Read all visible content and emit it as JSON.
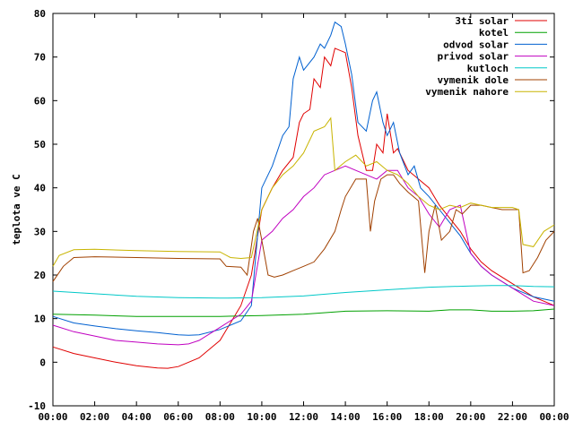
{
  "chart_data": {
    "type": "line",
    "title": "",
    "xlabel": "",
    "ylabel": "teplota ve C",
    "xlim": [
      0,
      24
    ],
    "ylim": [
      -10,
      80
    ],
    "xticks": [
      "00:00",
      "02:00",
      "04:00",
      "06:00",
      "08:00",
      "10:00",
      "12:00",
      "14:00",
      "16:00",
      "18:00",
      "20:00",
      "22:00",
      "00:00"
    ],
    "yticks": [
      -10,
      0,
      10,
      20,
      30,
      40,
      50,
      60,
      70,
      80
    ],
    "grid": false,
    "legend_position": "top-right",
    "series": [
      {
        "name": "3ti solar",
        "color": "#e00000",
        "points": [
          [
            0,
            3.5
          ],
          [
            1,
            2
          ],
          [
            2,
            1
          ],
          [
            3,
            0
          ],
          [
            4,
            -0.8
          ],
          [
            5,
            -1.3
          ],
          [
            5.5,
            -1.4
          ],
          [
            6,
            -1
          ],
          [
            7,
            1
          ],
          [
            8,
            5
          ],
          [
            9,
            13
          ],
          [
            9.5,
            20
          ],
          [
            10,
            35
          ],
          [
            10.5,
            40
          ],
          [
            11,
            44
          ],
          [
            11.5,
            47
          ],
          [
            11.8,
            55
          ],
          [
            12,
            57
          ],
          [
            12.3,
            58
          ],
          [
            12.5,
            65
          ],
          [
            12.8,
            63
          ],
          [
            13,
            70
          ],
          [
            13.3,
            68
          ],
          [
            13.5,
            72
          ],
          [
            14,
            71
          ],
          [
            14.3,
            63
          ],
          [
            14.6,
            52
          ],
          [
            15,
            44
          ],
          [
            15.3,
            44
          ],
          [
            15.5,
            50
          ],
          [
            15.8,
            48
          ],
          [
            16,
            57
          ],
          [
            16.3,
            48
          ],
          [
            16.5,
            49
          ],
          [
            16.8,
            46
          ],
          [
            17,
            44
          ],
          [
            17.5,
            42
          ],
          [
            18,
            40
          ],
          [
            18.5,
            36
          ],
          [
            19,
            33
          ],
          [
            19.5,
            30
          ],
          [
            20,
            26
          ],
          [
            20.5,
            23
          ],
          [
            21,
            21
          ],
          [
            22,
            18
          ],
          [
            23,
            15
          ],
          [
            24,
            13
          ]
        ]
      },
      {
        "name": "kotel",
        "color": "#00a000",
        "points": [
          [
            0,
            11
          ],
          [
            2,
            10.8
          ],
          [
            4,
            10.5
          ],
          [
            6,
            10.5
          ],
          [
            8,
            10.5
          ],
          [
            10,
            10.7
          ],
          [
            12,
            11
          ],
          [
            14,
            11.7
          ],
          [
            16,
            11.8
          ],
          [
            18,
            11.7
          ],
          [
            19,
            12
          ],
          [
            20,
            12
          ],
          [
            21,
            11.7
          ],
          [
            22,
            11.7
          ],
          [
            23,
            11.8
          ],
          [
            24,
            12.2
          ]
        ]
      },
      {
        "name": "odvod solar",
        "color": "#0060d0",
        "points": [
          [
            0,
            10.5
          ],
          [
            1,
            9
          ],
          [
            2,
            8.3
          ],
          [
            3,
            7.7
          ],
          [
            4,
            7.2
          ],
          [
            5,
            6.8
          ],
          [
            6,
            6.3
          ],
          [
            6.5,
            6.2
          ],
          [
            7,
            6.3
          ],
          [
            8,
            7.5
          ],
          [
            9,
            9.5
          ],
          [
            9.5,
            13
          ],
          [
            10,
            40
          ],
          [
            10.5,
            45
          ],
          [
            11,
            52
          ],
          [
            11.3,
            54
          ],
          [
            11.5,
            65
          ],
          [
            11.8,
            70
          ],
          [
            12,
            67
          ],
          [
            12.5,
            70
          ],
          [
            12.8,
            73
          ],
          [
            13,
            72
          ],
          [
            13.3,
            75
          ],
          [
            13.5,
            78
          ],
          [
            13.8,
            77
          ],
          [
            14,
            73
          ],
          [
            14.3,
            66
          ],
          [
            14.6,
            55
          ],
          [
            15,
            53
          ],
          [
            15.3,
            60
          ],
          [
            15.5,
            62
          ],
          [
            15.8,
            55
          ],
          [
            16,
            52
          ],
          [
            16.3,
            55
          ],
          [
            16.6,
            48
          ],
          [
            17,
            43
          ],
          [
            17.3,
            45
          ],
          [
            17.6,
            40
          ],
          [
            18,
            38
          ],
          [
            18.5,
            35
          ],
          [
            19,
            32
          ],
          [
            19.5,
            29
          ],
          [
            20,
            25
          ],
          [
            20.5,
            22
          ],
          [
            21,
            20
          ],
          [
            22,
            17
          ],
          [
            23,
            15
          ],
          [
            24,
            14
          ]
        ]
      },
      {
        "name": "privod solar",
        "color": "#c000c0",
        "points": [
          [
            0,
            8.5
          ],
          [
            1,
            7
          ],
          [
            2,
            6
          ],
          [
            3,
            5
          ],
          [
            4,
            4.6
          ],
          [
            5,
            4.2
          ],
          [
            6,
            4
          ],
          [
            6.5,
            4.2
          ],
          [
            7,
            5
          ],
          [
            8,
            8
          ],
          [
            9,
            11
          ],
          [
            9.5,
            14
          ],
          [
            10,
            28
          ],
          [
            10.5,
            30
          ],
          [
            11,
            33
          ],
          [
            11.5,
            35
          ],
          [
            12,
            38
          ],
          [
            12.5,
            40
          ],
          [
            13,
            43
          ],
          [
            13.5,
            44
          ],
          [
            14,
            45
          ],
          [
            14.5,
            44
          ],
          [
            15,
            43
          ],
          [
            15.5,
            42
          ],
          [
            16,
            44
          ],
          [
            16.5,
            44
          ],
          [
            17,
            40
          ],
          [
            17.5,
            38
          ],
          [
            18,
            34
          ],
          [
            18.5,
            31
          ],
          [
            19,
            35
          ],
          [
            19.5,
            36
          ],
          [
            20,
            25
          ],
          [
            20.5,
            22
          ],
          [
            21,
            20
          ],
          [
            22,
            17
          ],
          [
            23,
            14
          ],
          [
            24,
            13
          ]
        ]
      },
      {
        "name": "kutloch",
        "color": "#00c8c8",
        "points": [
          [
            0,
            16.3
          ],
          [
            2,
            15.7
          ],
          [
            4,
            15.1
          ],
          [
            6,
            14.8
          ],
          [
            8,
            14.7
          ],
          [
            10,
            14.8
          ],
          [
            12,
            15.2
          ],
          [
            14,
            16
          ],
          [
            16,
            16.6
          ],
          [
            18,
            17.2
          ],
          [
            20,
            17.5
          ],
          [
            21,
            17.6
          ],
          [
            22,
            17.6
          ],
          [
            23,
            17.4
          ],
          [
            24,
            17.3
          ]
        ]
      },
      {
        "name": "vymenik dole",
        "color": "#a04000",
        "points": [
          [
            0,
            18.5
          ],
          [
            0.5,
            22
          ],
          [
            1,
            24
          ],
          [
            2,
            24.2
          ],
          [
            4,
            24
          ],
          [
            6,
            23.8
          ],
          [
            8,
            23.7
          ],
          [
            8.3,
            22
          ],
          [
            9,
            21.8
          ],
          [
            9.3,
            20
          ],
          [
            9.6,
            30
          ],
          [
            9.8,
            33
          ],
          [
            10,
            28
          ],
          [
            10.3,
            20
          ],
          [
            10.6,
            19.5
          ],
          [
            11,
            20
          ],
          [
            11.5,
            21
          ],
          [
            12,
            22
          ],
          [
            12.5,
            23
          ],
          [
            13,
            26
          ],
          [
            13.5,
            30
          ],
          [
            13.8,
            35
          ],
          [
            14,
            38
          ],
          [
            14.5,
            42
          ],
          [
            15,
            42
          ],
          [
            15.2,
            30
          ],
          [
            15.4,
            37
          ],
          [
            15.7,
            42
          ],
          [
            16,
            43
          ],
          [
            16.3,
            43
          ],
          [
            16.6,
            41
          ],
          [
            17,
            39
          ],
          [
            17.5,
            37
          ],
          [
            17.8,
            20.5
          ],
          [
            18,
            30
          ],
          [
            18.3,
            36
          ],
          [
            18.6,
            28
          ],
          [
            19,
            30
          ],
          [
            19.3,
            35
          ],
          [
            19.6,
            34
          ],
          [
            20,
            36
          ],
          [
            20.5,
            36
          ],
          [
            21,
            35.5
          ],
          [
            21.5,
            35
          ],
          [
            22,
            35
          ],
          [
            22.3,
            35
          ],
          [
            22.5,
            20.5
          ],
          [
            22.8,
            21
          ],
          [
            23.2,
            24
          ],
          [
            23.6,
            28
          ],
          [
            24,
            30
          ]
        ]
      },
      {
        "name": "vymenik nahore",
        "color": "#c8b400",
        "points": [
          [
            0,
            22
          ],
          [
            0.3,
            24.5
          ],
          [
            1,
            25.8
          ],
          [
            2,
            25.9
          ],
          [
            4,
            25.6
          ],
          [
            6,
            25.4
          ],
          [
            8,
            25.3
          ],
          [
            8.5,
            24
          ],
          [
            9,
            23.8
          ],
          [
            9.5,
            24
          ],
          [
            10,
            35
          ],
          [
            10.5,
            40
          ],
          [
            11,
            43
          ],
          [
            11.5,
            45
          ],
          [
            12,
            48
          ],
          [
            12.5,
            53
          ],
          [
            13,
            54
          ],
          [
            13.3,
            56
          ],
          [
            13.5,
            44
          ],
          [
            14,
            46
          ],
          [
            14.5,
            47.5
          ],
          [
            15,
            45
          ],
          [
            15.5,
            46
          ],
          [
            16,
            44
          ],
          [
            16.5,
            43
          ],
          [
            17,
            41
          ],
          [
            17.5,
            38
          ],
          [
            18,
            36
          ],
          [
            18.5,
            35
          ],
          [
            19,
            36
          ],
          [
            19.5,
            35.5
          ],
          [
            20,
            36.5
          ],
          [
            20.5,
            36
          ],
          [
            21,
            35.5
          ],
          [
            21.5,
            35.5
          ],
          [
            22,
            35.5
          ],
          [
            22.3,
            35
          ],
          [
            22.5,
            27
          ],
          [
            23,
            26.5
          ],
          [
            23.5,
            30
          ],
          [
            24,
            31.5
          ]
        ]
      }
    ]
  }
}
